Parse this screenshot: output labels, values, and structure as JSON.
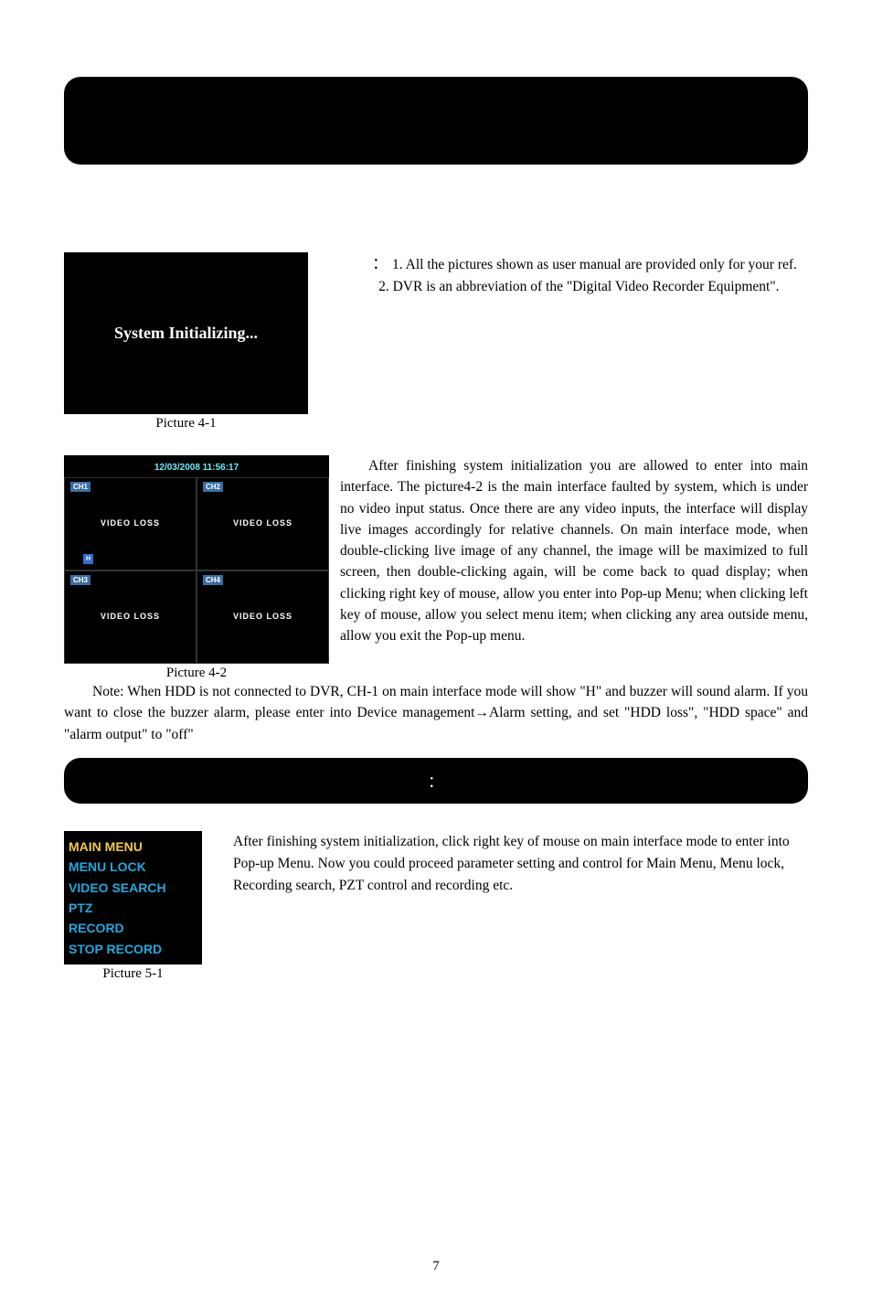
{
  "figures": {
    "pic41": {
      "text": "System Initializing...",
      "caption": "Picture 4-1",
      "bg": "#000000",
      "text_color": "#ffffff"
    },
    "pic42": {
      "timestamp": "12/03/2008 11:56:17",
      "ch_labels": [
        "CH1",
        "CH2",
        "CH3",
        "CH4"
      ],
      "cell_text": "VIDEO LOSS",
      "h_badge": "H",
      "caption": "Picture 4-2",
      "timestamp_color": "#6beaff",
      "chlabel_bg": "#3a6ea5"
    },
    "pic51": {
      "items": [
        "MAIN MENU",
        "MENU LOCK",
        "VIDEO SEARCH",
        "PTZ",
        "RECORD",
        "STOP RECORD"
      ],
      "selected_index": 0,
      "caption": "Picture 5-1",
      "text_color": "#1ea9e0",
      "selected_color": "#f2c94c"
    }
  },
  "text": {
    "side41_1a": "：",
    "side41_1b": "1. All the pictures shown as user manual are provided only for your ref.",
    "side41_2": "2. DVR is an abbreviation of the \"Digital Video Recorder Equipment\".",
    "para42": "After finishing system initialization you are allowed to enter into main interface. The picture4-2 is the main interface faulted by system, which is under no video input status. Once there are any video inputs, the interface will display live images accordingly for relative channels. On main interface mode, when double-clicking live image of any channel, the image will be maximized to full screen, then double-clicking again, will be come back to quad display; when clicking right key of mouse, allow you enter into Pop-up Menu; when clicking left key of mouse, allow you select menu item; when clicking any area outside menu, allow you exit the Pop-up menu.",
    "para42_below": "Note: When HDD is not connected to DVR, CH-1 on main interface mode will show \"H\" and buzzer will sound alarm. If you want to close the buzzer alarm, please enter into Device management→Alarm setting, and set \"HDD loss\", \"HDD space\" and \"alarm output\" to \"off\"",
    "bar2_colon": "：",
    "para51": "After finishing system initialization, click right key of mouse on main interface mode to enter into Pop-up Menu. Now you could proceed parameter setting and control for Main Menu, Menu lock, Recording search, PZT control and recording etc.",
    "page_num": "7"
  }
}
